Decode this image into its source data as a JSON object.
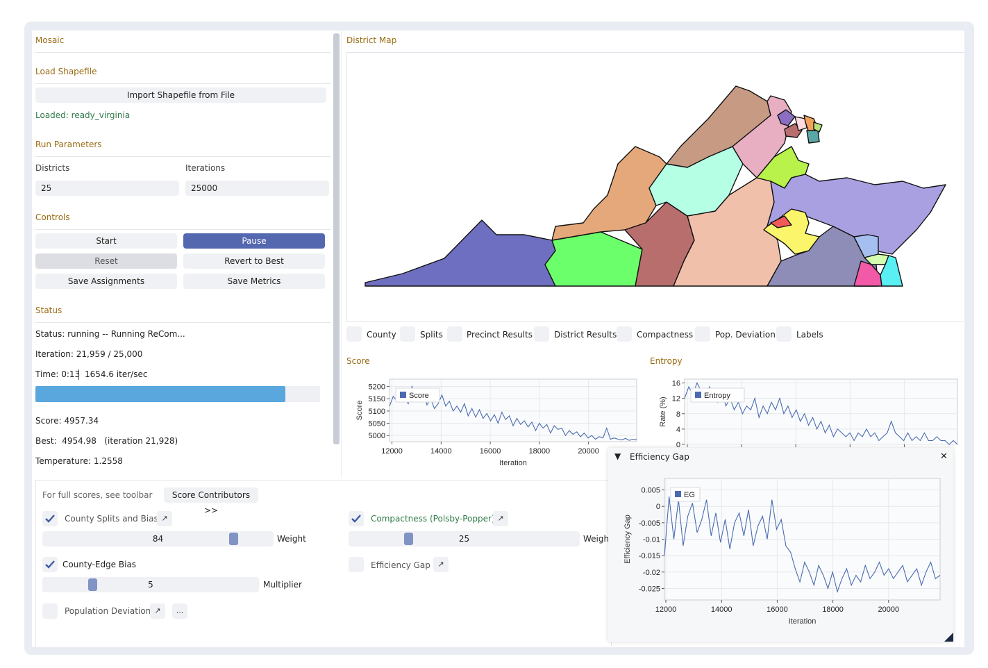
{
  "left_panel": {
    "title": "Mosaic",
    "load_shapefile": {
      "header": "Load Shapefile",
      "import_button": "Import Shapefile from File",
      "loaded_text": "Loaded: ready_virginia"
    },
    "run_parameters": {
      "header": "Run Parameters",
      "districts_label": "Districts",
      "districts_value": "25",
      "iterations_label": "Iterations",
      "iterations_value": "25000"
    },
    "controls": {
      "header": "Controls",
      "start": "Start",
      "pause": "Pause",
      "reset": "Reset",
      "revert": "Revert to Best",
      "save_assignments": "Save Assignments",
      "save_metrics": "Save Metrics"
    },
    "status": {
      "header": "Status",
      "status_line": "Status: running -- Running ReCom...",
      "iteration_line": "Iteration: 21,959 / 25,000",
      "time_line": "Time: 0:13",
      "rate": "1654.6 iter/sec",
      "progress": 0.878,
      "score_line": "Score: 4957.34",
      "best_line": "Best:  4954.98   (iteration 21,928)",
      "temperature_line": "Temperature: 1.2558"
    }
  },
  "district_map": {
    "header": "District Map",
    "toggles": [
      {
        "label": "County",
        "checked": false
      },
      {
        "label": "Splits",
        "checked": false
      },
      {
        "label": "Precinct Results",
        "checked": false
      },
      {
        "label": "District Results",
        "checked": false
      },
      {
        "label": "Compactness",
        "checked": false
      },
      {
        "label": "Pop. Deviation",
        "checked": false
      },
      {
        "label": "Labels",
        "checked": false
      }
    ]
  },
  "score_chart": {
    "header": "Score"
  },
  "entropy_chart": {
    "header": "Entropy"
  },
  "efficiency_window": {
    "title": "Efficiency Gap",
    "collapse_glyph": "▼",
    "close_glyph": "✕"
  },
  "contributors": {
    "hint": "For full scores, see toolbar",
    "button": "Score Contributors >>",
    "county_splits": {
      "label": "County Splits and Bias",
      "checked": true,
      "value": "84",
      "slider_label": "Weight",
      "fraction": 0.84
    },
    "county_edge": {
      "label": "County-Edge Bias",
      "checked": true,
      "value": "5",
      "slider_label": "Multiplier",
      "fraction": 0.22
    },
    "population": {
      "label": "Population Deviation",
      "checked": false,
      "more": "..."
    },
    "compactness": {
      "label": "Compactness (Polsby-Popper)",
      "checked": true,
      "value": "25",
      "slider_label": "Weigh",
      "fraction": 0.25
    },
    "efficiency": {
      "label": "Efficiency Gap",
      "checked": false
    },
    "link_glyph": "↗"
  },
  "colors": {
    "accent": "#5468b0",
    "header": "#9a6a12",
    "progress": "#5aa7de",
    "series": "#4a6bb0",
    "green_text": "#2f7a47"
  },
  "chart_data": [
    {
      "type": "line",
      "title": "",
      "xlabel": "Iteration",
      "ylabel": "Score",
      "xlim": [
        11900,
        21960
      ],
      "ylim": [
        4975,
        5230
      ],
      "xticks": [
        12000,
        14000,
        16000,
        18000,
        20000
      ],
      "yticks": [
        5000,
        5050,
        5100,
        5150,
        5200
      ],
      "legend": "top-left",
      "series": [
        {
          "name": "Score",
          "x_start": 11900,
          "x_end": 21960,
          "values": [
            5120,
            5160,
            5140,
            5175,
            5150,
            5130,
            5200,
            5160,
            5140,
            5180,
            5125,
            5150,
            5110,
            5130,
            5165,
            5120,
            5140,
            5100,
            5120,
            5095,
            5130,
            5080,
            5110,
            5075,
            5105,
            5070,
            5090,
            5060,
            5085,
            5050,
            5095,
            5065,
            5080,
            5040,
            5070,
            5045,
            5060,
            5035,
            5055,
            5020,
            5050,
            5030,
            5045,
            5010,
            5040,
            5025,
            5030,
            5000,
            5020,
            5005,
            5015,
            4995,
            5010,
            4990,
            5000,
            4985,
            4995,
            4990,
            5030,
            4985,
            4990,
            4985,
            4982,
            4988,
            4980,
            4985,
            4983
          ]
        }
      ]
    },
    {
      "type": "line",
      "title": "",
      "xlabel": "",
      "ylabel": "Rate (%)",
      "xlim": [
        11900,
        21960
      ],
      "ylim": [
        0,
        17
      ],
      "xticks": [
        12000,
        14000,
        16000,
        18000,
        20000
      ],
      "yticks": [
        0,
        4,
        8,
        12,
        16
      ],
      "legend": "top-left",
      "series": [
        {
          "name": "Entropy",
          "x_start": 11900,
          "x_end": 21960,
          "values": [
            12,
            15,
            13,
            16,
            14,
            12,
            15,
            13,
            11,
            14,
            10,
            12,
            9,
            11,
            8,
            10,
            9,
            12,
            7,
            10,
            8,
            11,
            9,
            12,
            8,
            10,
            7,
            9,
            6,
            8,
            5,
            7,
            4,
            6,
            3,
            5,
            2,
            4,
            3,
            2,
            3,
            1,
            3,
            2,
            4,
            2,
            3,
            1,
            2,
            3,
            6,
            3,
            2,
            1,
            3,
            1,
            2,
            1,
            3,
            1,
            1,
            2,
            1,
            1,
            0,
            1,
            0
          ]
        }
      ]
    },
    {
      "type": "line",
      "title": "",
      "xlabel": "Iteration",
      "ylabel": "Efficiency Gap",
      "xlim": [
        11950,
        21850
      ],
      "ylim": [
        -0.0285,
        0.0085
      ],
      "xticks": [
        12000,
        14000,
        16000,
        18000,
        20000
      ],
      "yticks": [
        0.005,
        0,
        -0.005,
        -0.01,
        -0.015,
        -0.02,
        -0.025
      ],
      "legend": "top-left",
      "series": [
        {
          "name": "EG",
          "x_start": 11950,
          "x_end": 21850,
          "values": [
            -0.015,
            0.003,
            -0.01,
            0.002,
            -0.012,
            -0.003,
            0.001,
            -0.008,
            -0.004,
            0.002,
            -0.009,
            -0.002,
            -0.011,
            -0.004,
            -0.013,
            -0.005,
            -0.002,
            -0.009,
            -0.001,
            -0.012,
            -0.006,
            -0.003,
            -0.01,
            0.002,
            -0.007,
            -0.004,
            -0.012,
            -0.014,
            -0.019,
            -0.023,
            -0.017,
            -0.02,
            -0.024,
            -0.018,
            -0.021,
            -0.025,
            -0.02,
            -0.026,
            -0.022,
            -0.019,
            -0.024,
            -0.021,
            -0.023,
            -0.018,
            -0.022,
            -0.02,
            -0.017,
            -0.021,
            -0.019,
            -0.022,
            -0.02,
            -0.018,
            -0.023,
            -0.021,
            -0.019,
            -0.024,
            -0.02,
            -0.017,
            -0.022,
            -0.021
          ]
        }
      ]
    }
  ]
}
